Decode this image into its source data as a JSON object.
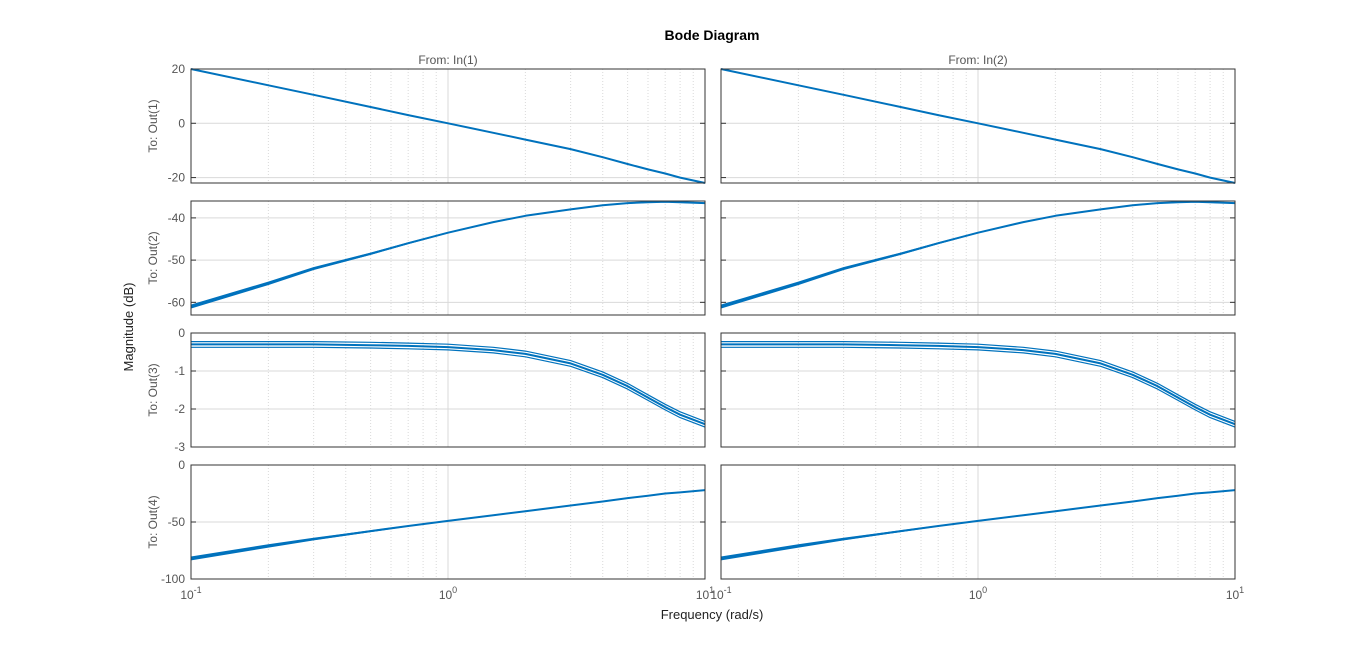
{
  "chart_data": {
    "type": "line",
    "title": "Bode Diagram",
    "xlabel": "Frequency  (rad/s)",
    "ylabel": "Magnitude (dB)",
    "xscale": "log",
    "xlim": [
      0.1,
      10
    ],
    "grid": true,
    "colors": {
      "series": "#0072BD",
      "grid": "#d9d9d9",
      "axis": "#333333",
      "text": "#555555"
    },
    "columns": [
      "From: In(1)",
      "From: In(2)"
    ],
    "rows": [
      {
        "label": "To: Out(1)",
        "ylim": [
          -22,
          20
        ],
        "yticks": [
          "20",
          "0",
          "-20"
        ],
        "ytick_values": [
          20,
          0,
          -20
        ]
      },
      {
        "label": "To: Out(2)",
        "ylim": [
          -63,
          -36
        ],
        "yticks": [
          "-40",
          "-50",
          "-60"
        ],
        "ytick_values": [
          -40,
          -50,
          -60
        ]
      },
      {
        "label": "To: Out(3)",
        "ylim": [
          -3,
          0
        ],
        "yticks": [
          "0",
          "-1",
          "-2",
          "-3"
        ],
        "ytick_values": [
          0,
          -1,
          -2,
          -3
        ]
      },
      {
        "label": "To: Out(4)",
        "ylim": [
          -100,
          0
        ],
        "yticks": [
          "0",
          "-50",
          "-100"
        ],
        "ytick_values": [
          0,
          -50,
          -100
        ]
      }
    ],
    "xtick_labels": [
      {
        "base": "10",
        "exp": "-1",
        "value": 0.1
      },
      {
        "base": "10",
        "exp": "0",
        "value": 1
      },
      {
        "base": "10",
        "exp": "1",
        "value": 10
      }
    ],
    "x": [
      0.1,
      0.2,
      0.3,
      0.5,
      0.7,
      1,
      1.5,
      2,
      3,
      4,
      5,
      6,
      7,
      8,
      10
    ],
    "series": [
      {
        "row": 0,
        "col": 0,
        "values": [
          20,
          14,
          10.5,
          6,
          3,
          0,
          -3.5,
          -6,
          -9.5,
          -12.5,
          -15,
          -17,
          -18.5,
          -20,
          -22
        ]
      },
      {
        "row": 0,
        "col": 1,
        "values": [
          20,
          14,
          10.5,
          6,
          3,
          0,
          -3.5,
          -6,
          -9.5,
          -12.5,
          -15,
          -17,
          -18.5,
          -20,
          -22
        ]
      },
      {
        "row": 1,
        "col": 0,
        "values": [
          -61,
          -55.5,
          -52,
          -48.5,
          -46,
          -43.5,
          -41,
          -39.5,
          -38,
          -37,
          -36.5,
          -36.3,
          -36.2,
          -36.3,
          -36.5
        ]
      },
      {
        "row": 1,
        "col": 1,
        "values": [
          -61,
          -55.5,
          -52,
          -48.5,
          -46,
          -43.5,
          -41,
          -39.5,
          -38,
          -37,
          -36.5,
          -36.3,
          -36.2,
          -36.3,
          -36.5
        ]
      },
      {
        "row": 2,
        "col": 0,
        "values": [
          -0.3,
          -0.3,
          -0.3,
          -0.32,
          -0.34,
          -0.37,
          -0.45,
          -0.55,
          -0.8,
          -1.1,
          -1.4,
          -1.7,
          -1.95,
          -2.15,
          -2.4
        ]
      },
      {
        "row": 2,
        "col": 1,
        "values": [
          -0.3,
          -0.3,
          -0.3,
          -0.32,
          -0.34,
          -0.37,
          -0.45,
          -0.55,
          -0.8,
          -1.1,
          -1.4,
          -1.7,
          -1.95,
          -2.15,
          -2.4
        ]
      },
      {
        "row": 3,
        "col": 0,
        "values": [
          -82,
          -71,
          -65,
          -58,
          -53.5,
          -49,
          -44,
          -40.5,
          -35.5,
          -32,
          -29,
          -27,
          -25,
          -24,
          -22
        ]
      },
      {
        "row": 3,
        "col": 1,
        "values": [
          -82,
          -71,
          -65,
          -58,
          -53.5,
          -49,
          -44,
          -40.5,
          -35.5,
          -32,
          -29,
          -27,
          -25,
          -24,
          -22
        ]
      }
    ]
  }
}
